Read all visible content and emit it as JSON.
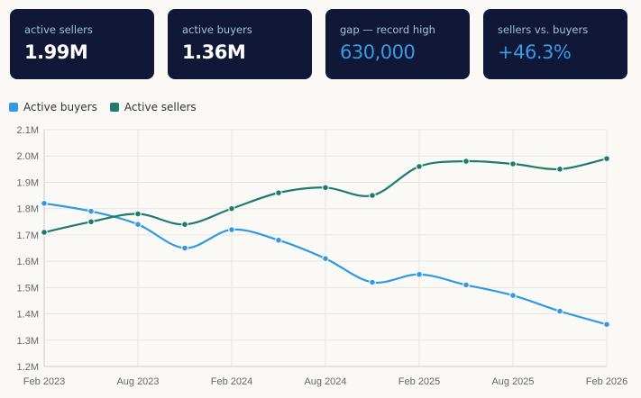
{
  "cards": [
    {
      "label": "active sellers",
      "value": "1.99M",
      "accent": false
    },
    {
      "label": "active buyers",
      "value": "1.36M",
      "accent": false
    },
    {
      "label": "gap — record high",
      "value": "630,000",
      "accent": true
    },
    {
      "label": "sellers vs. buyers",
      "value": "+46.3%",
      "accent": true
    }
  ],
  "chart_data": {
    "type": "line",
    "x": [
      "Feb 2023",
      "May 2023",
      "Aug 2023",
      "Nov 2023",
      "Feb 2024",
      "May 2024",
      "Aug 2024",
      "Nov 2024",
      "Feb 2025",
      "May 2025",
      "Aug 2025",
      "Nov 2025",
      "Feb 2026"
    ],
    "xtick_labels": [
      "Feb 2023",
      "Aug 2023",
      "Feb 2024",
      "Aug 2024",
      "Feb 2025",
      "Aug 2025",
      "Feb 2026"
    ],
    "ytick_labels": [
      "1.2M",
      "1.3M",
      "1.4M",
      "1.5M",
      "1.6M",
      "1.7M",
      "1.8M",
      "1.9M",
      "2.0M",
      "2.1M"
    ],
    "ylim": [
      1.2,
      2.1
    ],
    "yunit": "M",
    "grid": true,
    "legend_placement": "top-left",
    "series": [
      {
        "name": "Active buyers",
        "color": "#3399e0",
        "values": [
          1.82,
          1.79,
          1.74,
          1.65,
          1.72,
          1.68,
          1.61,
          1.52,
          1.55,
          1.51,
          1.47,
          1.41,
          1.36
        ]
      },
      {
        "name": "Active sellers",
        "color": "#1e7b6e",
        "values": [
          1.71,
          1.75,
          1.78,
          1.74,
          1.8,
          1.86,
          1.88,
          1.85,
          1.96,
          1.98,
          1.97,
          1.95,
          1.99
        ]
      }
    ]
  }
}
